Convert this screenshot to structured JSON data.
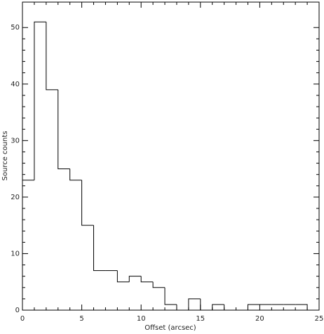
{
  "chart_data": {
    "type": "histogram",
    "x_label": "Offset (arcsec)",
    "y_label": "Source counts",
    "bins": [
      0,
      1,
      2,
      3,
      4,
      5,
      6,
      7,
      8,
      9,
      10,
      11,
      12,
      13,
      14,
      15,
      16,
      17,
      18,
      19,
      20,
      21,
      22,
      23,
      24
    ],
    "values": [
      23,
      51,
      39,
      25,
      23,
      15,
      7,
      7,
      5,
      6,
      5,
      4,
      1,
      0,
      2,
      0,
      1,
      0,
      0,
      1,
      1,
      1,
      1,
      1
    ],
    "color": "#000000",
    "xlim": [
      0,
      25
    ],
    "xticks": [
      0,
      5,
      10,
      15,
      20,
      25
    ],
    "ylim": [
      0,
      54.5
    ],
    "yticks": [
      0,
      10,
      20,
      30,
      40,
      50
    ]
  }
}
